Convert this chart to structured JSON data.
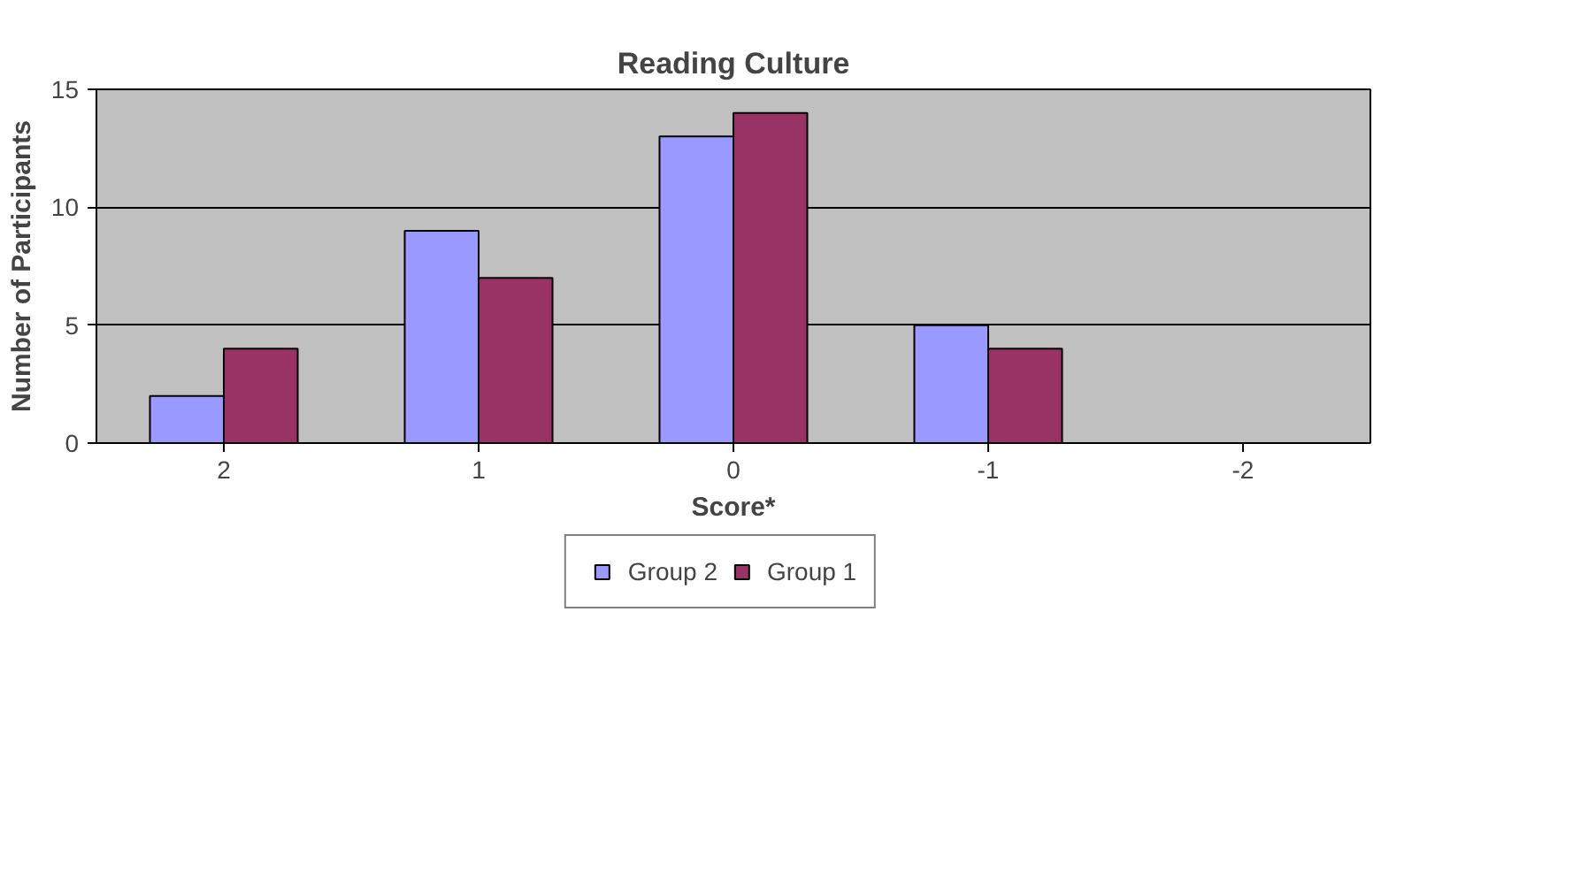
{
  "chart_data": {
    "type": "bar",
    "title": "Reading Culture",
    "xlabel": "Score*",
    "ylabel": "Number of Participants",
    "categories": [
      "2",
      "1",
      "0",
      "-1",
      "-2"
    ],
    "series": [
      {
        "name": "Group 2",
        "color": "#9999ff",
        "values": [
          2,
          9,
          13,
          5,
          null
        ]
      },
      {
        "name": "Group 1",
        "color": "#993366",
        "values": [
          4,
          7,
          14,
          4,
          null
        ]
      }
    ],
    "ylim": [
      0,
      15
    ],
    "yticks": [
      0,
      5,
      10,
      15
    ],
    "grid": "y",
    "legend": "bottom"
  }
}
